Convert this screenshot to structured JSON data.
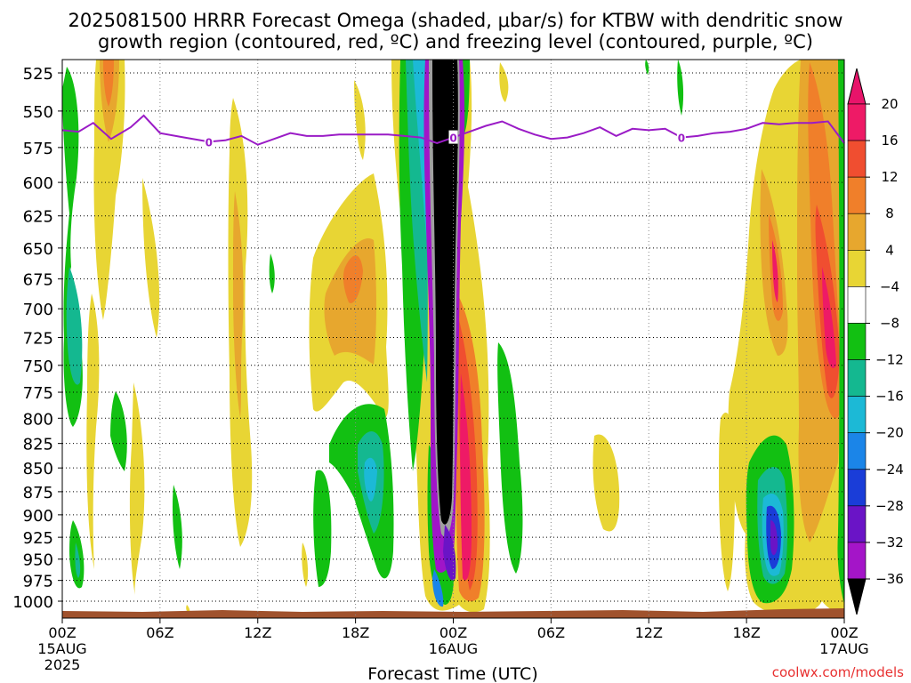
{
  "chart_data": {
    "type": "heatmap",
    "title_line1": "2025081500 HRRR Forecast Omega (shaded, μbar/s) for KTBW with dendritic snow",
    "title_line2": "growth region (contoured, red, ºC) and freezing level (contoured, purple, ºC)",
    "xlabel": "Forecast Time (UTC)",
    "ylabel": "",
    "x_ticks": [
      "00Z",
      "06Z",
      "12Z",
      "18Z",
      "00Z",
      "06Z",
      "12Z",
      "18Z",
      "00Z"
    ],
    "x_tick_hours": [
      0,
      6,
      12,
      18,
      24,
      30,
      36,
      42,
      48
    ],
    "x_date_labels": [
      {
        "hour": 0,
        "line1": "15AUG",
        "line2": "2025"
      },
      {
        "hour": 24,
        "line1": "16AUG",
        "line2": ""
      },
      {
        "hour": 48,
        "line1": "17AUG",
        "line2": ""
      }
    ],
    "xlim": [
      0,
      48
    ],
    "y_ticks": [
      525,
      550,
      575,
      600,
      625,
      650,
      675,
      700,
      725,
      750,
      775,
      800,
      825,
      850,
      875,
      900,
      925,
      950,
      975,
      1000
    ],
    "ylim": [
      1000,
      525
    ],
    "y_scale": "log",
    "grid": true,
    "colorbar": {
      "labels": [
        "20",
        "16",
        "12",
        "8",
        "4",
        "−4",
        "−8",
        "−12",
        "−16",
        "−20",
        "−24",
        "−28",
        "−32",
        "−36"
      ],
      "bounds": [
        20,
        16,
        12,
        8,
        4,
        -4,
        -8,
        -12,
        -16,
        -20,
        -24,
        -28,
        -32,
        -36
      ],
      "colors": [
        "#ee1a66",
        "#f04e30",
        "#f07f2a",
        "#e7a72e",
        "#e8d534",
        "#ffffff",
        "#12c012",
        "#14b890",
        "#1cb9d6",
        "#1b85e8",
        "#1a3dd8",
        "#6a14c6",
        "#a415c8",
        "#a0a0a0",
        "#000000"
      ],
      "top_color": "#e8146a",
      "bottom_color": "#000000"
    },
    "freezing_level": {
      "label": "0",
      "color": "#9a1bc6",
      "x": [
        0,
        1,
        1.9,
        3,
        4.2,
        5,
        6,
        7.5,
        9,
        10,
        11,
        12,
        13,
        14,
        15,
        16,
        17,
        18,
        19,
        20,
        21,
        22,
        23,
        24,
        25,
        26,
        27,
        28,
        29,
        30,
        31,
        32,
        33,
        34,
        35,
        36,
        37,
        38,
        39,
        40,
        41,
        42,
        43,
        44,
        45,
        46,
        47,
        48
      ],
      "y": [
        563,
        564,
        558,
        569,
        561,
        553,
        565,
        568,
        571,
        570,
        567,
        573,
        569,
        565,
        567,
        567,
        566,
        566,
        566,
        566,
        567,
        568,
        572,
        568,
        564,
        560,
        557,
        562,
        566,
        569,
        568,
        565,
        561,
        567,
        562,
        563,
        562,
        568,
        567,
        565,
        564,
        562,
        558,
        559,
        558,
        558,
        557,
        572
      ]
    },
    "surface_color": "#a0522d",
    "omega_features": [
      {
        "name": "strong ascent core",
        "hours": [
          22.0,
          24.2
        ],
        "pressure": [
          525,
          1000
        ],
        "max_ubar_s": -40
      },
      {
        "name": "descent core",
        "hours": [
          24.5,
          26.5
        ],
        "pressure": [
          700,
          1000
        ],
        "max_ubar_s": 24
      },
      {
        "name": "descent plume",
        "hours": [
          42.5,
          48
        ],
        "pressure": [
          525,
          1000
        ],
        "max_ubar_s": 20
      }
    ]
  },
  "footer": {
    "credit": "coolwx.com/models"
  }
}
